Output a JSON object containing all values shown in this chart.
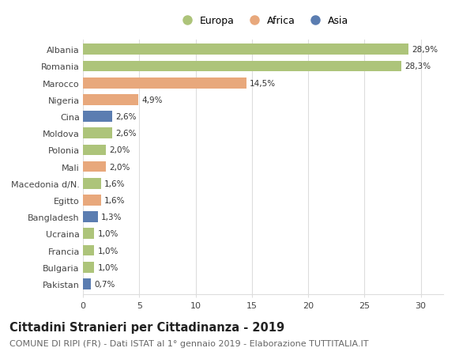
{
  "categories": [
    "Albania",
    "Romania",
    "Marocco",
    "Nigeria",
    "Cina",
    "Moldova",
    "Polonia",
    "Mali",
    "Macedonia d/N.",
    "Egitto",
    "Bangladesh",
    "Ucraina",
    "Francia",
    "Bulgaria",
    "Pakistan"
  ],
  "values": [
    28.9,
    28.3,
    14.5,
    4.9,
    2.6,
    2.6,
    2.0,
    2.0,
    1.6,
    1.6,
    1.3,
    1.0,
    1.0,
    1.0,
    0.7
  ],
  "labels": [
    "28,9%",
    "28,3%",
    "14,5%",
    "4,9%",
    "2,6%",
    "2,6%",
    "2,0%",
    "2,0%",
    "1,6%",
    "1,6%",
    "1,3%",
    "1,0%",
    "1,0%",
    "1,0%",
    "0,7%"
  ],
  "continents": [
    "Europa",
    "Europa",
    "Africa",
    "Africa",
    "Asia",
    "Europa",
    "Europa",
    "Africa",
    "Europa",
    "Africa",
    "Asia",
    "Europa",
    "Europa",
    "Europa",
    "Asia"
  ],
  "colors": {
    "Europa": "#adc47a",
    "Africa": "#e8a87c",
    "Asia": "#5b7db1"
  },
  "legend_labels": [
    "Europa",
    "Africa",
    "Asia"
  ],
  "legend_colors": [
    "#adc47a",
    "#e8a87c",
    "#5b7db1"
  ],
  "xlim": [
    0,
    32
  ],
  "xticks": [
    0,
    5,
    10,
    15,
    20,
    25,
    30
  ],
  "title": "Cittadini Stranieri per Cittadinanza - 2019",
  "subtitle": "COMUNE DI RIPI (FR) - Dati ISTAT al 1° gennaio 2019 - Elaborazione TUTTITALIA.IT",
  "background_color": "#ffffff",
  "grid_color": "#dddddd",
  "bar_height": 0.65,
  "title_fontsize": 10.5,
  "subtitle_fontsize": 8,
  "label_fontsize": 7.5,
  "tick_fontsize": 8
}
